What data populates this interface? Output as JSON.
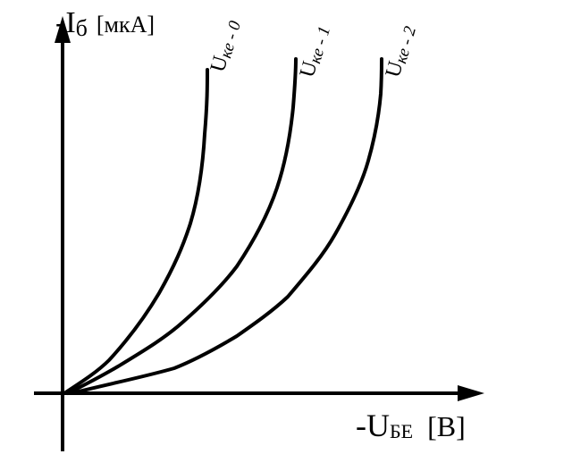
{
  "y_axis": {
    "symbol": "-I",
    "subscript": "б",
    "unit": "[мкА]"
  },
  "x_axis": {
    "symbol": "-U",
    "subscript": "БЕ",
    "unit": "[В]"
  },
  "curves": [
    {
      "symbol": "U",
      "subscript": "ке - 0"
    },
    {
      "symbol": "U",
      "subscript": "ке - 1"
    },
    {
      "symbol": "U",
      "subscript": "ке - 2"
    }
  ]
}
